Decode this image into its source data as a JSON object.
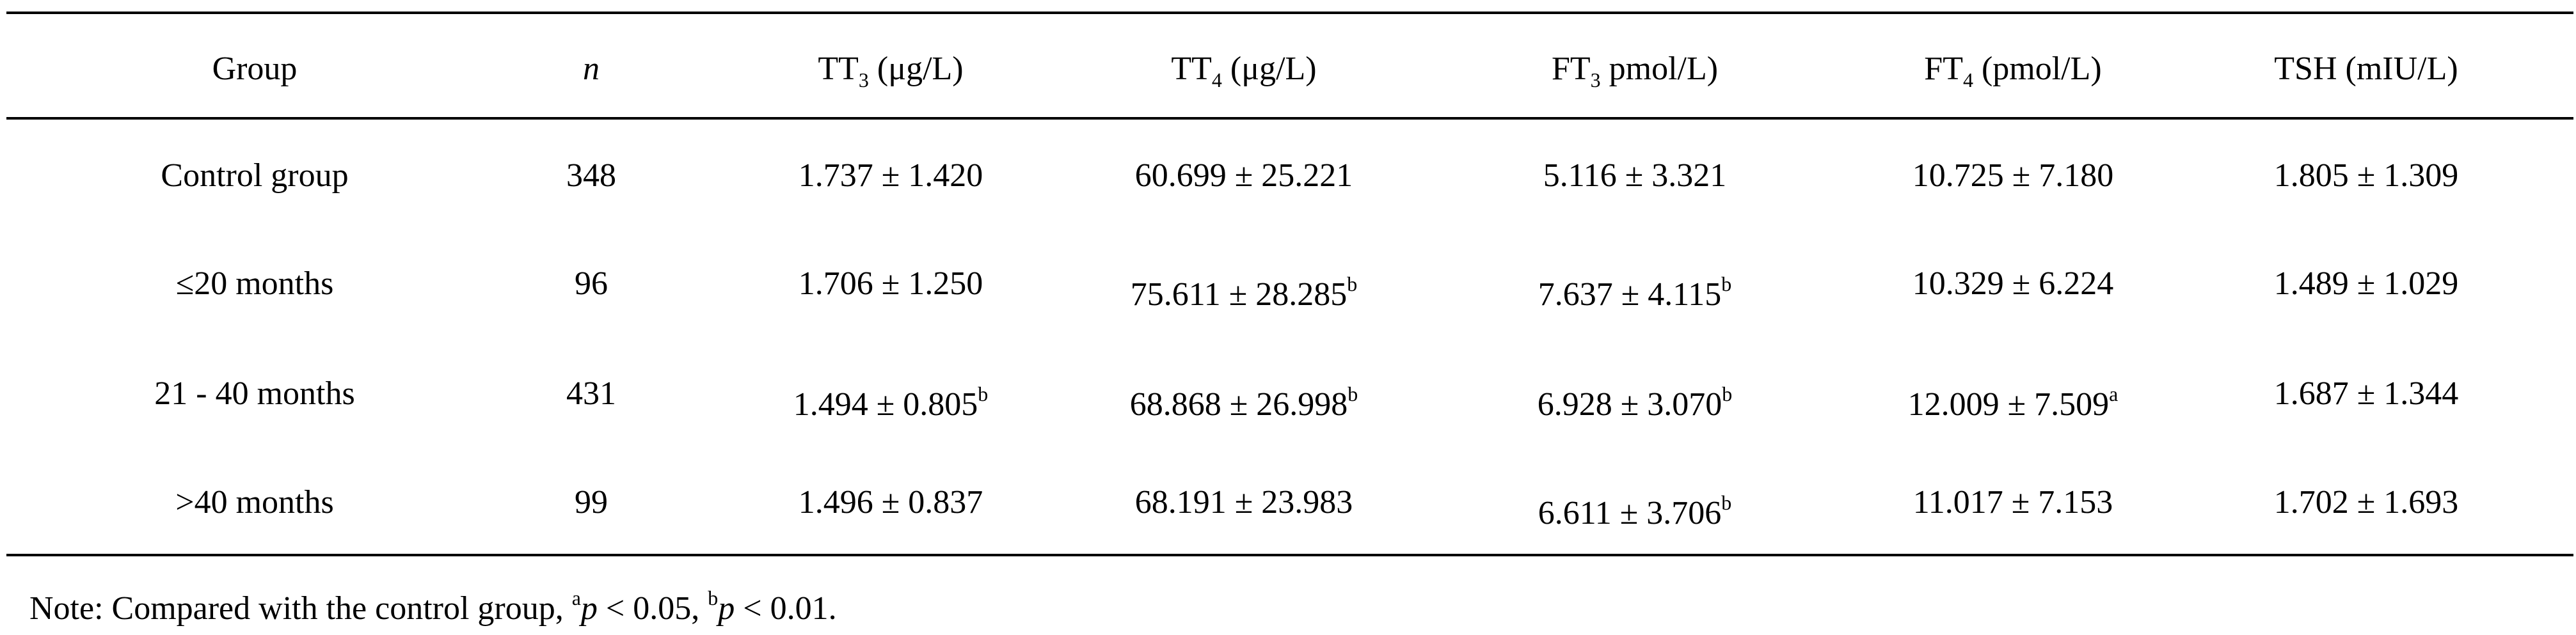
{
  "table": {
    "headers": [
      [
        {
          "t": "Group"
        }
      ],
      [
        {
          "t": "n",
          "style": "italic"
        }
      ],
      [
        {
          "t": "TT"
        },
        {
          "t": "3",
          "style": "sub"
        },
        {
          "t": " (μg/L)"
        }
      ],
      [
        {
          "t": "TT"
        },
        {
          "t": "4",
          "style": "sub"
        },
        {
          "t": " (μg/L)"
        }
      ],
      [
        {
          "t": "FT"
        },
        {
          "t": "3",
          "style": "sub"
        },
        {
          "t": " pmol/L)"
        }
      ],
      [
        {
          "t": "FT"
        },
        {
          "t": "4",
          "style": "sub"
        },
        {
          "t": " (pmol/L)"
        }
      ],
      [
        {
          "t": "TSH (mIU/L)"
        }
      ]
    ],
    "rows": [
      [
        "Control group",
        "348",
        "1.737 ± 1.420",
        "60.699 ± 25.221",
        "5.116 ± 3.321",
        "10.725 ± 7.180",
        "1.805 ± 1.309"
      ],
      [
        "≤20 months",
        "96",
        "1.706 ± 1.250",
        [
          {
            "t": "75.611 ± 28.285"
          },
          {
            "t": "b",
            "style": "sup"
          }
        ],
        [
          {
            "t": "7.637 ± 4.115"
          },
          {
            "t": "b",
            "style": "sup"
          }
        ],
        "10.329 ± 6.224",
        "1.489 ± 1.029"
      ],
      [
        "21 - 40 months",
        "431",
        [
          {
            "t": "1.494 ± 0.805"
          },
          {
            "t": "b",
            "style": "sup"
          }
        ],
        [
          {
            "t": "68.868 ± 26.998"
          },
          {
            "t": "b",
            "style": "sup"
          }
        ],
        [
          {
            "t": "6.928 ± 3.070"
          },
          {
            "t": "b",
            "style": "sup"
          }
        ],
        [
          {
            "t": "12.009 ± 7.509"
          },
          {
            "t": "a",
            "style": "sup"
          }
        ],
        "1.687 ± 1.344"
      ],
      [
        ">40 months",
        "99",
        "1.496 ± 0.837",
        "68.191 ± 23.983",
        [
          {
            "t": "6.611 ± 3.706"
          },
          {
            "t": "b",
            "style": "sup"
          }
        ],
        "11.017 ± 7.153",
        "1.702 ± 1.693"
      ]
    ],
    "note": [
      {
        "t": "Note: Compared with the control group, "
      },
      {
        "t": "a",
        "style": "sup"
      },
      {
        "t": "p",
        "style": "italic"
      },
      {
        "t": " < 0.05, "
      },
      {
        "t": "b",
        "style": "sup"
      },
      {
        "t": "p",
        "style": "italic"
      },
      {
        "t": " < 0.01."
      }
    ]
  }
}
